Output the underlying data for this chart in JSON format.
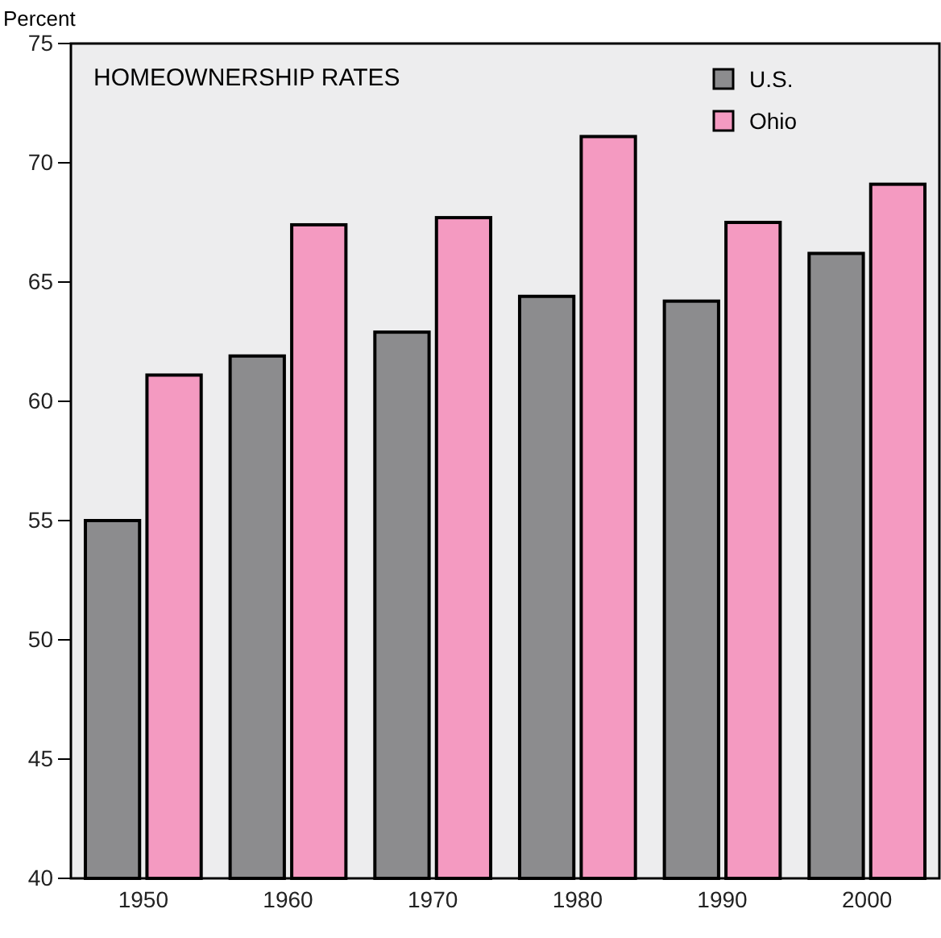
{
  "chart_data": {
    "type": "bar",
    "title": "HOMEOWNERSHIP RATES",
    "ylabel": "Percent",
    "categories": [
      "1950",
      "1960",
      "1970",
      "1980",
      "1990",
      "2000"
    ],
    "series": [
      {
        "name": "U.S.",
        "color": "#8c8c8e",
        "values": [
          55.0,
          61.9,
          62.9,
          64.4,
          64.2,
          66.2
        ]
      },
      {
        "name": "Ohio",
        "color": "#f49ac1",
        "values": [
          61.1,
          67.4,
          67.7,
          71.1,
          67.5,
          69.1
        ]
      }
    ],
    "ylim": [
      40,
      75
    ],
    "yticks": [
      40,
      45,
      50,
      55,
      60,
      65,
      70,
      75
    ],
    "grid": false,
    "legend": "top right"
  }
}
